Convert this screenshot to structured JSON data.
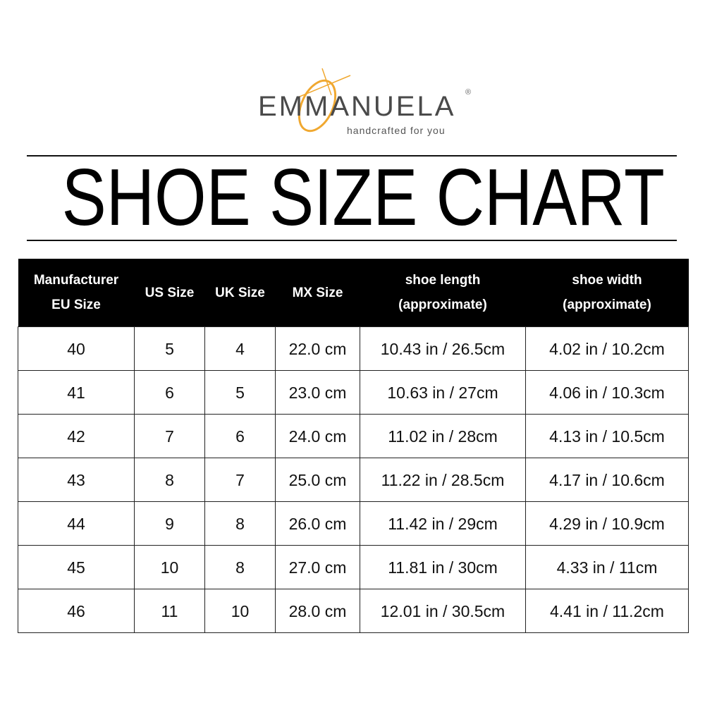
{
  "brand": {
    "name": "EMMANUELA",
    "registered": "®",
    "tagline": "handcrafted for you",
    "accent_color": "#f0a830",
    "text_color": "#4a4a4a"
  },
  "title": "SHOE SIZE CHART",
  "table": {
    "headers": [
      {
        "line1": "Manufacturer",
        "line2": "EU Size"
      },
      {
        "line1": "US Size",
        "line2": ""
      },
      {
        "line1": "UK Size",
        "line2": ""
      },
      {
        "line1": "MX Size",
        "line2": ""
      },
      {
        "line1": "shoe length",
        "line2": "(approximate)"
      },
      {
        "line1": "shoe width",
        "line2": "(approximate)"
      }
    ],
    "rows": [
      [
        "40",
        "5",
        "4",
        "22.0 cm",
        "10.43 in / 26.5cm",
        "4.02 in / 10.2cm"
      ],
      [
        "41",
        "6",
        "5",
        "23.0 cm",
        "10.63 in / 27cm",
        "4.06 in / 10.3cm"
      ],
      [
        "42",
        "7",
        "6",
        "24.0 cm",
        "11.02 in / 28cm",
        "4.13 in / 10.5cm"
      ],
      [
        "43",
        "8",
        "7",
        "25.0 cm",
        "11.22 in / 28.5cm",
        "4.17 in / 10.6cm"
      ],
      [
        "44",
        "9",
        "8",
        "26.0 cm",
        "11.42 in / 29cm",
        "4.29 in / 10.9cm"
      ],
      [
        "45",
        "10",
        "8",
        "27.0 cm",
        "11.81 in / 30cm",
        "4.33 in / 11cm"
      ],
      [
        "46",
        "11",
        "10",
        "28.0 cm",
        "12.01 in / 30.5cm",
        "4.41 in / 11.2cm"
      ]
    ]
  }
}
